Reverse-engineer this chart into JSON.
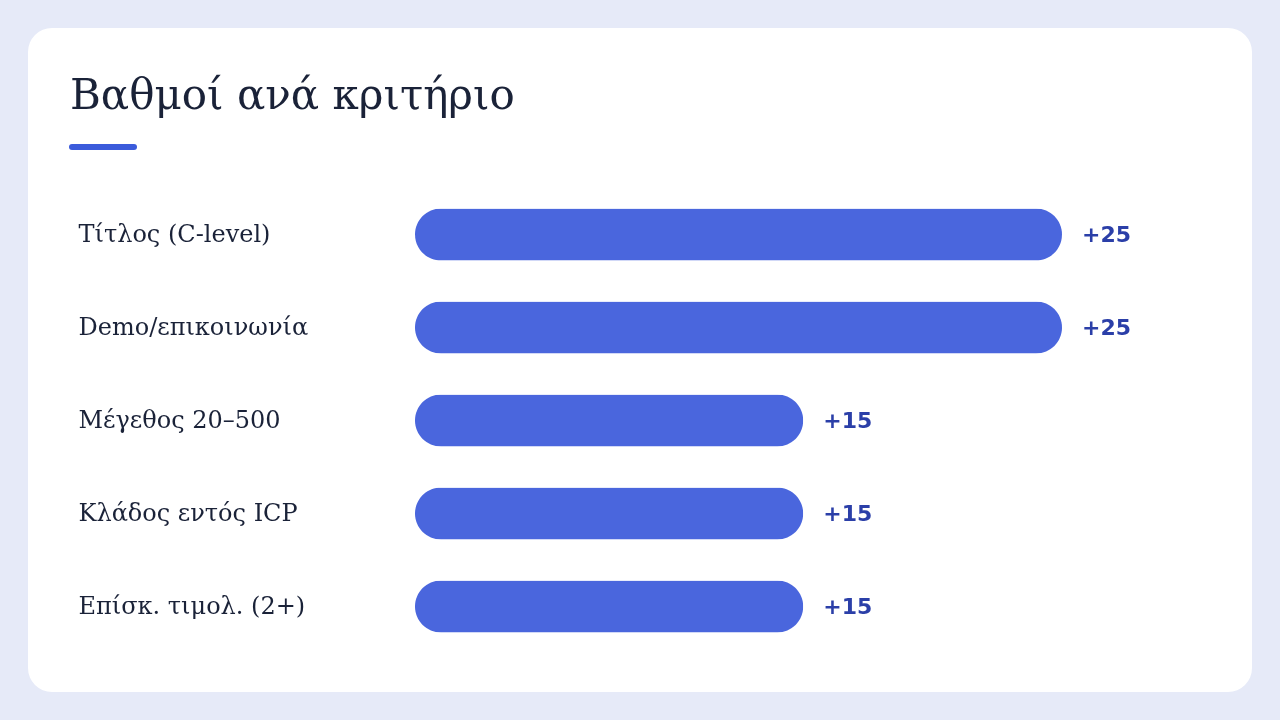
{
  "chart_data": {
    "type": "bar",
    "orientation": "horizontal",
    "title": "Βαθμοί ανά κριτήριο",
    "categories": [
      "Τίτλος (C-level)",
      "Demo/επικοινωνία",
      "Μέγεθος 20–500",
      "Κλάδος εντός ICP",
      "Επίσκ. τιμολ. (2+)"
    ],
    "values": [
      25,
      25,
      15,
      15,
      15
    ],
    "value_labels": [
      "+25",
      "+25",
      "+15",
      "+15",
      "+15"
    ],
    "color": "#4a66dd"
  }
}
